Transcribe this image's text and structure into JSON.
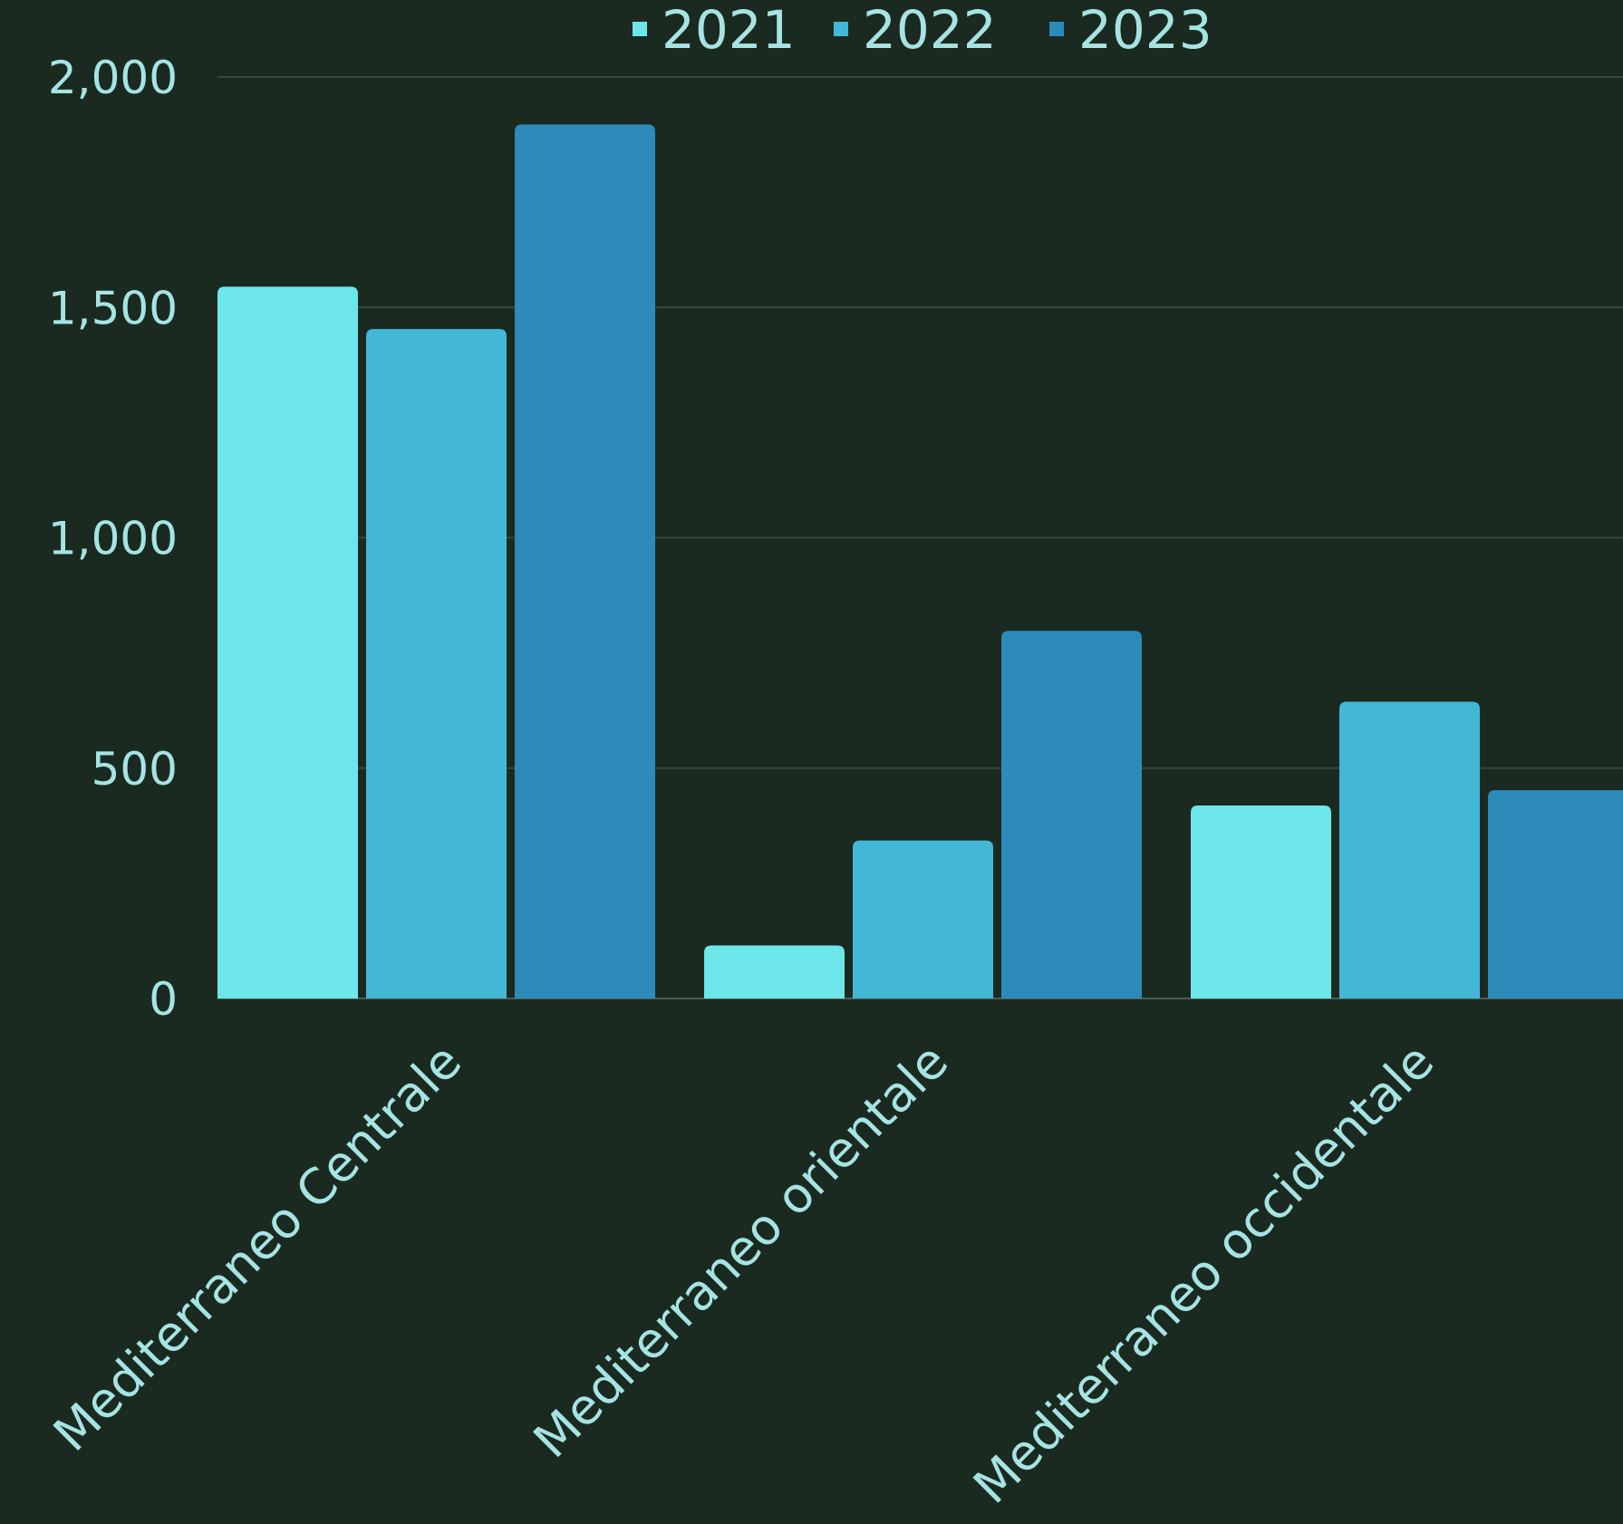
{
  "chart_data": {
    "type": "bar",
    "categories": [
      "Mediterraneo Centrale",
      "Mediterraneo orientale",
      "Mediterraneo occidentale"
    ],
    "series": [
      {
        "name": "2021",
        "color": "#6de6ea",
        "values": [
          1545,
          115,
          419
        ]
      },
      {
        "name": "2022",
        "color": "#42b7d6",
        "values": [
          1453,
          343,
          644
        ]
      },
      {
        "name": "2023",
        "color": "#2d8bba",
        "values": [
          1897,
          798,
          452
        ]
      }
    ],
    "ylim": [
      0,
      2000
    ],
    "yticks": [
      0,
      500,
      1000,
      1500,
      2000
    ],
    "ytick_labels": [
      "0",
      "500",
      "1,000",
      "1,500",
      "2,000"
    ],
    "grid": true,
    "legend_position": "top-center",
    "title": "",
    "xlabel": "",
    "ylabel": "",
    "colors": {
      "background": "#1b2a20",
      "text": "#a6e4e4",
      "grid": "#34483c"
    }
  }
}
